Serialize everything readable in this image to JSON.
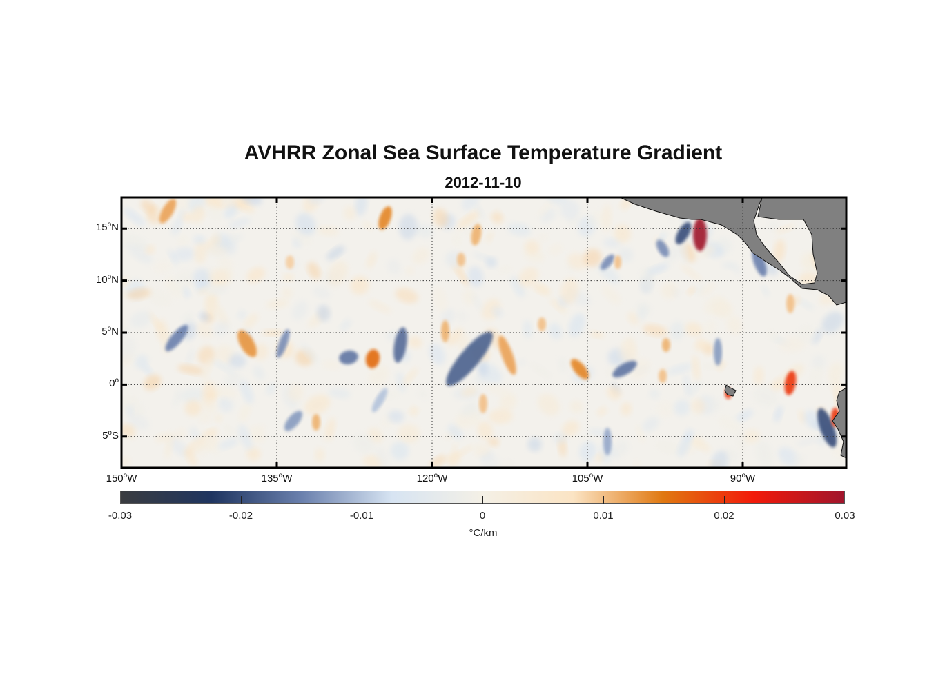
{
  "title": "AVHRR Zonal Sea Surface Temperature Gradient",
  "subtitle": "2012-11-10",
  "map": {
    "lon_range": [
      -150,
      -80
    ],
    "lat_range": [
      -8,
      18
    ],
    "grid": true,
    "land_color": "#808080",
    "ocean_background": "#f3f1ec",
    "lat_ticks": [
      {
        "value": 15,
        "num": "15",
        "deg": "o",
        "hemi": "N"
      },
      {
        "value": 10,
        "num": "10",
        "deg": "o",
        "hemi": "N"
      },
      {
        "value": 5,
        "num": "5",
        "deg": "o",
        "hemi": "N"
      },
      {
        "value": 0,
        "num": "0",
        "deg": "o",
        "hemi": ""
      },
      {
        "value": -5,
        "num": "5",
        "deg": "o",
        "hemi": "S"
      }
    ],
    "lon_ticks": [
      {
        "value": -150,
        "num": "150",
        "deg": "o",
        "hemi": "W"
      },
      {
        "value": -135,
        "num": "135",
        "deg": "o",
        "hemi": "W"
      },
      {
        "value": -120,
        "num": "120",
        "deg": "o",
        "hemi": "W"
      },
      {
        "value": -105,
        "num": "105",
        "deg": "o",
        "hemi": "W"
      },
      {
        "value": -90,
        "num": "90",
        "deg": "o",
        "hemi": "W"
      }
    ]
  },
  "colorbar": {
    "min": -0.03,
    "max": 0.03,
    "tick_labels": [
      "-0.03",
      "-0.02",
      "-0.01",
      "0",
      "0.01",
      "0.02",
      "0.03"
    ],
    "tick_values": [
      -0.03,
      -0.02,
      -0.01,
      0,
      0.01,
      0.02,
      0.03
    ],
    "units": "°C/km",
    "colors": [
      "#3a3c40",
      "#1f3560",
      "#6a80ad",
      "#d7e4f2",
      "#f4f0e6",
      "#fbe4c4",
      "#e07810",
      "#f21a0a",
      "#a0152c"
    ]
  }
}
